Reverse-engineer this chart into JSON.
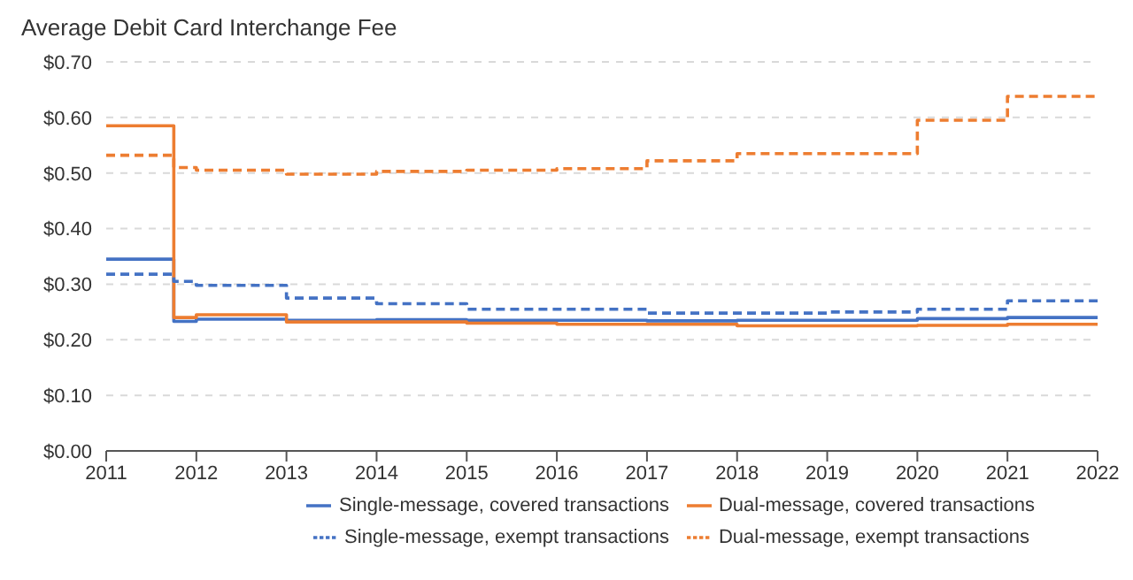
{
  "chart_data": {
    "type": "step",
    "title": "Average Debit Card Interchange Fee",
    "x": [
      2011,
      2011.75,
      2012,
      2013,
      2014,
      2015,
      2016,
      2017,
      2018,
      2019,
      2020,
      2021,
      2022
    ],
    "series": [
      {
        "name": "Single-message, covered transactions",
        "color": "#4472c4",
        "line_style": "solid",
        "values": [
          0.345,
          0.233,
          0.237,
          0.235,
          0.236,
          0.235,
          0.235,
          0.234,
          0.235,
          0.235,
          0.238,
          0.24,
          0.24
        ]
      },
      {
        "name": "Dual-message, covered transactions",
        "color": "#ed7d31",
        "line_style": "solid",
        "values": [
          0.585,
          0.24,
          0.245,
          0.232,
          0.232,
          0.23,
          0.228,
          0.228,
          0.225,
          0.225,
          0.226,
          0.228,
          0.228
        ]
      },
      {
        "name": "Single-message, exempt transactions",
        "color": "#4472c4",
        "line_style": "dashed",
        "values": [
          0.318,
          0.305,
          0.298,
          0.275,
          0.265,
          0.255,
          0.255,
          0.248,
          0.248,
          0.25,
          0.255,
          0.27,
          0.27
        ]
      },
      {
        "name": "Dual-message, exempt transactions",
        "color": "#ed7d31",
        "line_style": "dashed",
        "values": [
          0.532,
          0.51,
          0.505,
          0.498,
          0.503,
          0.505,
          0.508,
          0.522,
          0.535,
          0.535,
          0.595,
          0.638,
          0.638
        ]
      }
    ],
    "xlim": [
      2011,
      2022
    ],
    "xticks": [
      2011,
      2012,
      2013,
      2014,
      2015,
      2016,
      2017,
      2018,
      2019,
      2020,
      2021,
      2022
    ],
    "ylim": [
      0,
      0.7
    ],
    "yticks": [
      {
        "value": 0,
        "label": "$0.00"
      },
      {
        "value": 0.1,
        "label": "$0.10"
      },
      {
        "value": 0.2,
        "label": "$0.20"
      },
      {
        "value": 0.3,
        "label": "$0.30"
      },
      {
        "value": 0.4,
        "label": "$0.40"
      },
      {
        "value": 0.5,
        "label": "$0.50"
      },
      {
        "value": 0.6,
        "label": "$0.60"
      },
      {
        "value": 0.7,
        "label": "$0.70"
      }
    ],
    "grid": "y",
    "legend": "bottom",
    "marker": "none"
  }
}
